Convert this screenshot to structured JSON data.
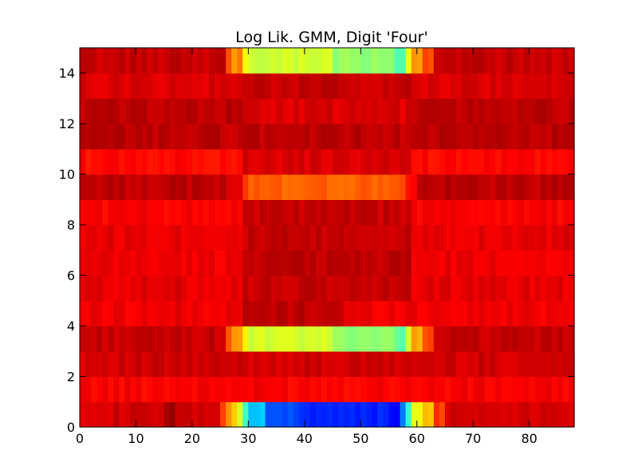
{
  "chart_data": {
    "type": "heatmap",
    "title": "Log Lik. GMM, Digit 'Four'",
    "xlabel": "",
    "ylabel": "",
    "xlim": [
      0,
      88
    ],
    "ylim": [
      0,
      15
    ],
    "x_ticks": [
      0,
      10,
      20,
      30,
      40,
      50,
      60,
      70,
      80
    ],
    "y_ticks": [
      0,
      2,
      4,
      6,
      8,
      10,
      12,
      14
    ],
    "grid": false,
    "colormap": "jet",
    "value_range": [
      0,
      1
    ],
    "rows": 15,
    "columns": 88,
    "row_profiles": [
      {
        "row": 0,
        "base": 0.92,
        "segments": [
          {
            "from": 15,
            "to": 17,
            "value": 0.96
          },
          {
            "from": 25,
            "to": 26,
            "value": 0.82
          },
          {
            "from": 26,
            "to": 27,
            "value": 0.74
          },
          {
            "from": 27,
            "to": 28,
            "value": 0.66
          },
          {
            "from": 28,
            "to": 29,
            "value": 0.58
          },
          {
            "from": 29,
            "to": 30,
            "value": 0.42
          },
          {
            "from": 30,
            "to": 33,
            "value": 0.32
          },
          {
            "from": 33,
            "to": 39,
            "value": 0.2
          },
          {
            "from": 39,
            "to": 55,
            "value": 0.16
          },
          {
            "from": 55,
            "to": 57,
            "value": 0.12
          },
          {
            "from": 57,
            "to": 58,
            "value": 0.24
          },
          {
            "from": 58,
            "to": 59,
            "value": 0.42
          },
          {
            "from": 59,
            "to": 61,
            "value": 0.62
          },
          {
            "from": 61,
            "to": 63,
            "value": 0.7
          },
          {
            "from": 63,
            "to": 65,
            "value": 0.82
          }
        ]
      },
      {
        "row": 1,
        "base": 0.88,
        "segments": []
      },
      {
        "row": 2,
        "base": 0.92,
        "segments": []
      },
      {
        "row": 3,
        "base": 0.93,
        "segments": [
          {
            "from": 26,
            "to": 27,
            "value": 0.8
          },
          {
            "from": 27,
            "to": 29,
            "value": 0.72
          },
          {
            "from": 29,
            "to": 30,
            "value": 0.62
          },
          {
            "from": 30,
            "to": 45,
            "value": 0.58
          },
          {
            "from": 45,
            "to": 56,
            "value": 0.52
          },
          {
            "from": 56,
            "to": 58,
            "value": 0.46
          },
          {
            "from": 58,
            "to": 59,
            "value": 0.6
          },
          {
            "from": 59,
            "to": 61,
            "value": 0.72
          },
          {
            "from": 61,
            "to": 63,
            "value": 0.8
          }
        ]
      },
      {
        "row": 4,
        "base": 0.89,
        "segments": [
          {
            "from": 29,
            "to": 47,
            "value": 0.94
          }
        ]
      },
      {
        "row": 5,
        "base": 0.9,
        "segments": [
          {
            "from": 29,
            "to": 59,
            "value": 0.93
          }
        ]
      },
      {
        "row": 6,
        "base": 0.89,
        "segments": [
          {
            "from": 29,
            "to": 59,
            "value": 0.94
          }
        ]
      },
      {
        "row": 7,
        "base": 0.9,
        "segments": [
          {
            "from": 29,
            "to": 59,
            "value": 0.93
          }
        ]
      },
      {
        "row": 8,
        "base": 0.88,
        "segments": [
          {
            "from": 29,
            "to": 59,
            "value": 0.93
          }
        ]
      },
      {
        "row": 9,
        "base": 0.94,
        "segments": [
          {
            "from": 26,
            "to": 29,
            "value": 0.9
          },
          {
            "from": 29,
            "to": 30,
            "value": 0.84
          },
          {
            "from": 30,
            "to": 55,
            "value": 0.78
          },
          {
            "from": 55,
            "to": 58,
            "value": 0.8
          },
          {
            "from": 58,
            "to": 60,
            "value": 0.86
          }
        ]
      },
      {
        "row": 10,
        "base": 0.87,
        "segments": [
          {
            "from": 29,
            "to": 59,
            "value": 0.91
          }
        ]
      },
      {
        "row": 11,
        "base": 0.94,
        "segments": []
      },
      {
        "row": 12,
        "base": 0.94,
        "segments": [
          {
            "from": 29,
            "to": 59,
            "value": 0.91
          }
        ]
      },
      {
        "row": 13,
        "base": 0.91,
        "segments": [
          {
            "from": 29,
            "to": 59,
            "value": 0.93
          }
        ]
      },
      {
        "row": 14,
        "base": 0.93,
        "segments": [
          {
            "from": 26,
            "to": 27,
            "value": 0.8
          },
          {
            "from": 27,
            "to": 29,
            "value": 0.74
          },
          {
            "from": 29,
            "to": 30,
            "value": 0.62
          },
          {
            "from": 30,
            "to": 45,
            "value": 0.58
          },
          {
            "from": 45,
            "to": 56,
            "value": 0.52
          },
          {
            "from": 56,
            "to": 58,
            "value": 0.44
          },
          {
            "from": 58,
            "to": 59,
            "value": 0.6
          },
          {
            "from": 59,
            "to": 61,
            "value": 0.72
          },
          {
            "from": 61,
            "to": 63,
            "value": 0.8
          }
        ]
      }
    ]
  }
}
